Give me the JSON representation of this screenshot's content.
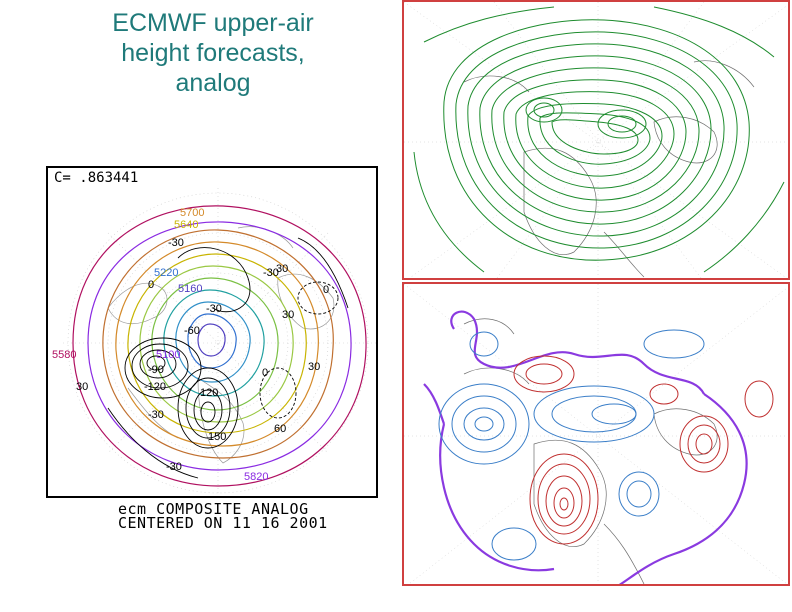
{
  "slide": {
    "title_lines": [
      "ECMWF upper-air",
      "height forecasts,",
      "analog"
    ]
  },
  "analog_panel": {
    "correlation": "C= .863441",
    "caption_line1": "ecm COMPOSITE ANALOG",
    "caption_line2": "CENTERED ON 11 16 2001",
    "contour_labels": {
      "h5700": "5700",
      "h5640": "5640",
      "h5220": "5220",
      "h5160": "5160",
      "h5100": "5100",
      "h5580": "5580",
      "h5820": "5820",
      "a_m30_1": "-30",
      "a_m30_2": "-30",
      "a_m30_3": "-30",
      "a_m30_4": "-30",
      "a_m30_5": "-30",
      "a_m60": "-60",
      "a_m90": "-90",
      "a_m120": "-120",
      "a_0_1": "0",
      "a_0_2": "0",
      "a_0_3": "0",
      "a_30_1": "30",
      "a_30_2": "30",
      "a_30_3": "30",
      "a_30_4": "30",
      "a_60": "60",
      "a_120": "120",
      "a_150": "150"
    },
    "colors": {
      "border": "#000000",
      "height_contours": [
        "#b01060",
        "#8a2be2",
        "#d48a2a",
        "#c8b400",
        "#7ac043",
        "#20a0a0",
        "#3070d0",
        "#5040c0"
      ],
      "anomaly_contours": "#000000"
    }
  },
  "top_map": {
    "description_colors": {
      "frame": "#d04040",
      "contours": "#1e8c2e",
      "geography": "#606060"
    }
  },
  "bottom_map": {
    "description_colors": {
      "frame": "#d04040",
      "positive": "#c03030",
      "negative": "#3a7ec8",
      "zero_line": "#8a3ae0",
      "geography": "#606060"
    }
  }
}
